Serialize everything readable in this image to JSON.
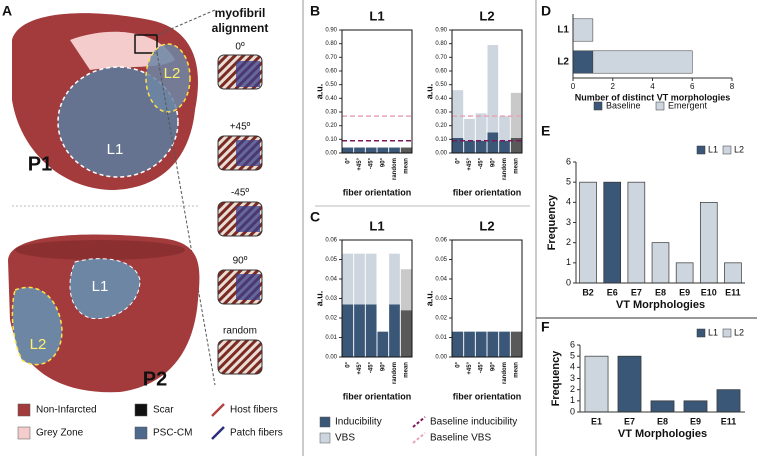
{
  "panel_labels": [
    "A",
    "B",
    "C",
    "D",
    "E",
    "F"
  ],
  "hearts": [
    {
      "name": "P1",
      "patches": [
        "L1",
        "L2"
      ]
    },
    {
      "name": "P2",
      "patches": [
        "L1",
        "L2"
      ]
    }
  ],
  "myofibril": {
    "title": [
      "myofibril",
      "alignment"
    ],
    "orientations": [
      "0º",
      "+45º",
      "-45º",
      "90º",
      "random"
    ]
  },
  "tissue_legend": [
    {
      "name": "Non-Infarcted",
      "color": "#a33b3c"
    },
    {
      "name": "Scar",
      "color": "#111111"
    },
    {
      "name": "Grey Zone",
      "color": "#f4cccc"
    },
    {
      "name": "PSC-CM",
      "color": "#4d6a8c"
    }
  ],
  "fiber_legend": [
    {
      "name": "Host fibers",
      "color": "#b04444"
    },
    {
      "name": "Patch fibers",
      "color": "#2b2f7a"
    }
  ],
  "chart_data": [
    {
      "type": "bar",
      "stacked": true,
      "title": "L1",
      "categories": [
        "0°",
        "+45°",
        "-45°",
        "90°",
        "random",
        "mean"
      ],
      "highlight_index": 5,
      "series": [
        {
          "name": "Inducibility",
          "color": "#3b5777",
          "highlight_color": "#595959",
          "values": [
            0.04,
            0.04,
            0.04,
            0.04,
            0.04,
            0.04
          ]
        },
        {
          "name": "VBS",
          "color": "#cdd6df",
          "highlight_color": "#c9c9c9",
          "values": [
            0,
            0,
            0,
            0,
            0,
            0
          ]
        }
      ],
      "reference_lines": [
        {
          "name": "Baseline inducibility",
          "value": 0.09,
          "color": "#7a1a5c"
        },
        {
          "name": "Baseline VBS",
          "value": 0.27,
          "color": "#e8a5b8"
        }
      ],
      "xlabel": "fiber orientation",
      "ylabel": "a.u.",
      "ylim": [
        0,
        0.9
      ],
      "yticks": [
        {
          "value": 0,
          "label": "0.00"
        },
        {
          "value": 0.1,
          "label": "0.10"
        },
        {
          "value": 0.2,
          "label": "0.20"
        },
        {
          "value": 0.3,
          "label": "0.30"
        },
        {
          "value": 0.4,
          "label": "0.40"
        },
        {
          "value": 0.5,
          "label": "0.50"
        },
        {
          "value": 0.6,
          "label": "0.60"
        },
        {
          "value": 0.7,
          "label": "0.70"
        },
        {
          "value": 0.8,
          "label": "0.80"
        },
        {
          "value": 0.9,
          "label": "0.90"
        }
      ]
    },
    {
      "type": "bar",
      "stacked": true,
      "title": "L2",
      "categories": [
        "0°",
        "+45°",
        "-45°",
        "90°",
        "random",
        "mean"
      ],
      "highlight_index": 5,
      "series": [
        {
          "name": "Inducibility",
          "color": "#3b5777",
          "highlight_color": "#595959",
          "values": [
            0.11,
            0.09,
            0.09,
            0.15,
            0.09,
            0.11
          ]
        },
        {
          "name": "VBS",
          "color": "#cdd6df",
          "highlight_color": "#c9c9c9",
          "values": [
            0.35,
            0.16,
            0.2,
            0.64,
            0.18,
            0.33
          ]
        }
      ],
      "reference_lines": [
        {
          "name": "Baseline inducibility",
          "value": 0.09,
          "color": "#7a1a5c"
        },
        {
          "name": "Baseline VBS",
          "value": 0.27,
          "color": "#e8a5b8"
        }
      ],
      "xlabel": "fiber orientation",
      "ylabel": "a.u.",
      "ylim": [
        0,
        0.9
      ],
      "yticks": [
        {
          "value": 0,
          "label": "0.00"
        },
        {
          "value": 0.1,
          "label": "0.10"
        },
        {
          "value": 0.2,
          "label": "0.20"
        },
        {
          "value": 0.3,
          "label": "0.30"
        },
        {
          "value": 0.4,
          "label": "0.40"
        },
        {
          "value": 0.5,
          "label": "0.50"
        },
        {
          "value": 0.6,
          "label": "0.60"
        },
        {
          "value": 0.7,
          "label": "0.70"
        },
        {
          "value": 0.8,
          "label": "0.80"
        },
        {
          "value": 0.9,
          "label": "0.90"
        }
      ]
    },
    {
      "type": "bar",
      "stacked": true,
      "title": "L1",
      "categories": [
        "0°",
        "+45°",
        "-45°",
        "90°",
        "random",
        "mean"
      ],
      "highlight_index": 5,
      "series": [
        {
          "name": "Inducibility",
          "color": "#3b5777",
          "highlight_color": "#595959",
          "values": [
            0.027,
            0.027,
            0.027,
            0.013,
            0.027,
            0.024
          ]
        },
        {
          "name": "VBS",
          "color": "#cdd6df",
          "highlight_color": "#c9c9c9",
          "values": [
            0.026,
            0.026,
            0.026,
            0,
            0.026,
            0.021
          ]
        }
      ],
      "xlabel": "fiber orientation",
      "ylabel": "a.u.",
      "ylim": [
        0,
        0.06
      ],
      "yticks": [
        {
          "value": 0,
          "label": "0.00"
        },
        {
          "value": 0.01,
          "label": "0.01"
        },
        {
          "value": 0.02,
          "label": "0.02"
        },
        {
          "value": 0.03,
          "label": "0.03"
        },
        {
          "value": 0.04,
          "label": "0.04"
        },
        {
          "value": 0.05,
          "label": "0.05"
        },
        {
          "value": 0.06,
          "label": "0.06"
        }
      ]
    },
    {
      "type": "bar",
      "stacked": true,
      "title": "L2",
      "categories": [
        "0°",
        "+45°",
        "-45°",
        "90°",
        "random",
        "mean"
      ],
      "highlight_index": 5,
      "series": [
        {
          "name": "Inducibility",
          "color": "#3b5777",
          "highlight_color": "#595959",
          "values": [
            0.013,
            0.013,
            0.013,
            0.013,
            0.013,
            0.013
          ]
        },
        {
          "name": "VBS",
          "color": "#cdd6df",
          "highlight_color": "#c9c9c9",
          "values": [
            0,
            0,
            0,
            0,
            0,
            0
          ]
        }
      ],
      "xlabel": "fiber orientation",
      "ylabel": "a.u.",
      "ylim": [
        0,
        0.06
      ],
      "yticks": [
        {
          "value": 0,
          "label": "0.00"
        },
        {
          "value": 0.01,
          "label": "0.01"
        },
        {
          "value": 0.02,
          "label": "0.02"
        },
        {
          "value": 0.03,
          "label": "0.03"
        },
        {
          "value": 0.04,
          "label": "0.04"
        },
        {
          "value": 0.05,
          "label": "0.05"
        },
        {
          "value": 0.06,
          "label": "0.06"
        }
      ]
    },
    {
      "type": "hbar",
      "stacked": true,
      "categories": [
        "L1",
        "L2"
      ],
      "series": [
        {
          "name": "Baseline",
          "color": "#3b5777",
          "values": [
            0,
            1
          ]
        },
        {
          "name": "Emergent",
          "color": "#cdd6df",
          "values": [
            1,
            5
          ]
        }
      ],
      "xlabel": "Number of distinct VT morphologies",
      "xlim": [
        0,
        8
      ],
      "xticks": [
        0,
        2,
        4,
        6,
        8
      ],
      "legend": "bottom"
    },
    {
      "type": "bar",
      "stacked": false,
      "categories": [
        "B2",
        "E6",
        "E7",
        "E8",
        "E9",
        "E10",
        "E11"
      ],
      "series": [
        {
          "name": "L1",
          "color": "#3b5777",
          "values": [
            null,
            5,
            null,
            null,
            null,
            null,
            null
          ]
        },
        {
          "name": "L2",
          "color": "#cdd6df",
          "values": [
            5,
            null,
            5,
            2,
            1,
            4,
            1
          ]
        }
      ],
      "xlabel": "VT Morphologies",
      "ylabel": "Frequency",
      "ylim": [
        0,
        6
      ],
      "yticks": [
        0,
        1,
        2,
        3,
        4,
        5,
        6
      ],
      "legend": "top-right"
    },
    {
      "type": "bar",
      "stacked": false,
      "categories": [
        "E1",
        "E7",
        "E8",
        "E9",
        "E11"
      ],
      "series": [
        {
          "name": "L1",
          "color": "#3b5777",
          "values": [
            null,
            5,
            1,
            1,
            2
          ]
        },
        {
          "name": "L2",
          "color": "#cdd6df",
          "values": [
            5,
            null,
            null,
            null,
            null
          ]
        }
      ],
      "xlabel": "VT Morphologies",
      "ylabel": "Frequency",
      "ylim": [
        0,
        6
      ],
      "yticks": [
        0,
        1,
        2,
        3,
        4,
        5,
        6
      ],
      "legend": "top-right"
    }
  ]
}
